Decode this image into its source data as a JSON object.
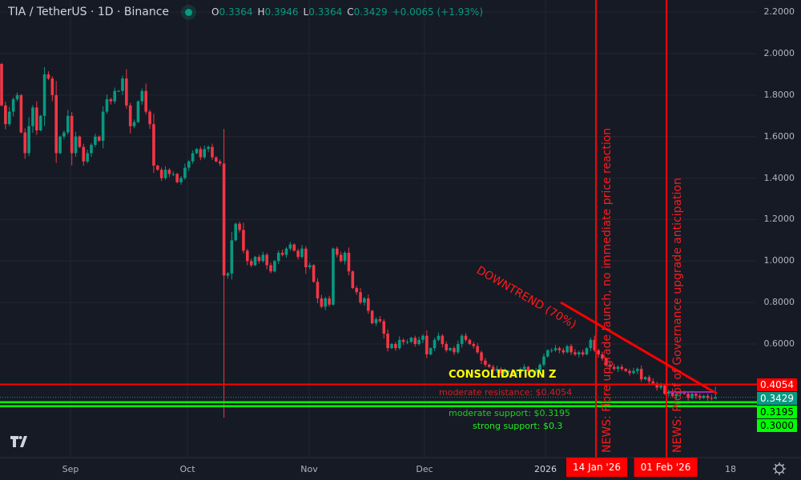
{
  "header": {
    "symbol": "TIA / TetherUS · 1D · Binance",
    "open_label": "O",
    "open": "0.3364",
    "high_label": "H",
    "high": "0.3946",
    "low_label": "L",
    "low": "0.3364",
    "close_label": "C",
    "close": "0.3429",
    "change": "+0.0065 (+1.93%)"
  },
  "colors": {
    "up": "#089981",
    "down": "#f23645",
    "annotation": "#ff0000",
    "support": "#00ff00",
    "consolidation": "#ffff00",
    "background": "#161a25"
  },
  "chart_data": {
    "type": "candlestick",
    "interval": "1D",
    "ylim": [
      0.2,
      2.2
    ],
    "y_ticks": [
      "2.2000",
      "2.0000",
      "1.8000",
      "1.6000",
      "1.4000",
      "1.2000",
      "1.0000",
      "0.8000",
      "0.6000"
    ],
    "x_ticks": [
      "Sep",
      "Oct",
      "Nov",
      "Dec",
      "2026",
      "18"
    ],
    "grid": true,
    "last_candle": {
      "open": 0.3364,
      "high": 0.3946,
      "low": 0.3364,
      "close": 0.3429
    },
    "notable_wick": {
      "date": "2025-10-10",
      "low": 0.245
    },
    "daily_closes": [
      {
        "month": "2025-08",
        "start_day": 14,
        "first_open": 1.95,
        "close": [
          1.75,
          1.66,
          1.72,
          1.78,
          1.8,
          1.62,
          1.52,
          1.65,
          1.74,
          1.63,
          1.7,
          1.9,
          1.88,
          1.8,
          1.52,
          1.6,
          1.62,
          1.7
        ]
      },
      {
        "month": "2025-09",
        "start_day": 1,
        "close": [
          1.52,
          1.6,
          1.55,
          1.48,
          1.52,
          1.56,
          1.6,
          1.58,
          1.72,
          1.78,
          1.77,
          1.82,
          1.82,
          1.88,
          1.75,
          1.65,
          1.67,
          1.77,
          1.82,
          1.72,
          1.66,
          1.46,
          1.44,
          1.4,
          1.44,
          1.42,
          1.42,
          1.38,
          1.4,
          1.45
        ]
      },
      {
        "month": "2025-10",
        "start_day": 1,
        "close": [
          1.48,
          1.52,
          1.54,
          1.5,
          1.54,
          1.55,
          1.5,
          1.48,
          1.47,
          0.93,
          0.94,
          1.1,
          1.18,
          1.15,
          1.05,
          1.0,
          0.98,
          1.02,
          1.0,
          1.03,
          0.98,
          0.95,
          1.0,
          1.04,
          1.03,
          1.06,
          1.08,
          1.05,
          1.02,
          1.06,
          0.97
        ]
      },
      {
        "month": "2025-11",
        "start_day": 1,
        "close": [
          0.98,
          0.9,
          0.82,
          0.78,
          0.82,
          0.79,
          1.06,
          1.03,
          1.0,
          1.04,
          0.95,
          0.87,
          0.85,
          0.8,
          0.82,
          0.76,
          0.7,
          0.72,
          0.71,
          0.65,
          0.58,
          0.6,
          0.58,
          0.62,
          0.61,
          0.61,
          0.63,
          0.6,
          0.62,
          0.64
        ]
      },
      {
        "month": "2025-12",
        "start_day": 1,
        "close": [
          0.55,
          0.58,
          0.62,
          0.64,
          0.6,
          0.57,
          0.58,
          0.56,
          0.6,
          0.64,
          0.62,
          0.6,
          0.59,
          0.56,
          0.52,
          0.5,
          0.49,
          0.47,
          0.48,
          0.46,
          0.47,
          0.47,
          0.46,
          0.46,
          0.48,
          0.49,
          0.47,
          0.47,
          0.47,
          0.5,
          0.54
        ]
      },
      {
        "month": "2026-01",
        "start_day": 1,
        "close": [
          0.57,
          0.57,
          0.58,
          0.57,
          0.56,
          0.59,
          0.56,
          0.55,
          0.56,
          0.55,
          0.58,
          0.62,
          0.57,
          0.55,
          0.53,
          0.5,
          0.49,
          0.48,
          0.49,
          0.48,
          0.47,
          0.46,
          0.47,
          0.48,
          0.43,
          0.44,
          0.42,
          0.41,
          0.39,
          0.4,
          0.36
        ]
      },
      {
        "month": "2026-02",
        "start_day": 1,
        "close": [
          0.37,
          0.35,
          0.36,
          0.37,
          0.36,
          0.34,
          0.36,
          0.35,
          0.34,
          0.35,
          0.34,
          0.3364,
          0.3429
        ]
      }
    ],
    "horizontal_levels": [
      {
        "price": 0.4054,
        "label": "0.4054",
        "color": "#ff0000"
      },
      {
        "price": 0.3429,
        "label": "0.3429",
        "color": "#089981"
      },
      {
        "price": 0.3195,
        "label": "0.3195",
        "color": "#00ff00"
      },
      {
        "price": 0.3,
        "label": "0.3000",
        "color": "#00ff00"
      }
    ],
    "annotations": {
      "news1": {
        "date_label": "14 Jan '26",
        "text": "NEWS: Fibre upgrade launch, no immediate price reaction"
      },
      "news2": {
        "date_label": "01 Feb '26",
        "text": "NEWS: Proof of Governance upgrade anticipation"
      },
      "trend": "DOWNTREND (70%)",
      "consolidation": "CONSOLIDATION Z",
      "resistance": "moderate resistance: $0.4054",
      "support_moderate": "moderate support: $0.3195",
      "support_strong": "strong support: $0.3"
    }
  }
}
